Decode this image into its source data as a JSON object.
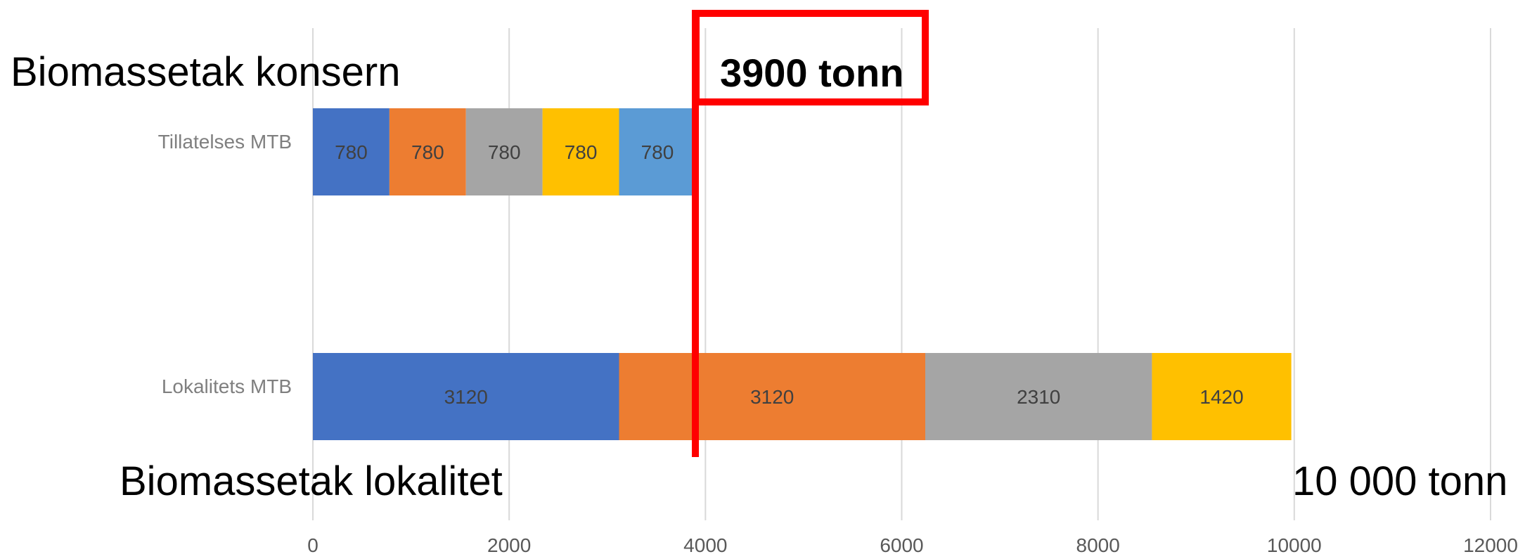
{
  "chart_data": {
    "type": "bar",
    "orientation": "horizontal",
    "stacked": true,
    "categories": [
      "Tillatelses MTB",
      "Lokalitets MTB"
    ],
    "series": [
      {
        "color": "#4472C4",
        "values": [
          780,
          3120
        ]
      },
      {
        "color": "#ED7D31",
        "values": [
          780,
          3120
        ]
      },
      {
        "color": "#A5A5A5",
        "values": [
          780,
          2310
        ]
      },
      {
        "color": "#FFC000",
        "values": [
          780,
          1420
        ]
      },
      {
        "color": "#5B9BD5",
        "values": [
          780,
          null
        ]
      }
    ],
    "xlim": [
      0,
      12000
    ],
    "x_ticks": [
      "0",
      "2000",
      "4000",
      "6000",
      "8000",
      "10000",
      "12000"
    ],
    "grid": "vertical",
    "legend": "none",
    "reference_line": {
      "x": 3900,
      "color": "#FF0000"
    }
  },
  "annotations": {
    "top_title": "Biomassetak konsern",
    "bottom_title": "Biomassetak lokalitet",
    "cap_label": "3900 tonn",
    "total_label": "10 000 tonn"
  }
}
